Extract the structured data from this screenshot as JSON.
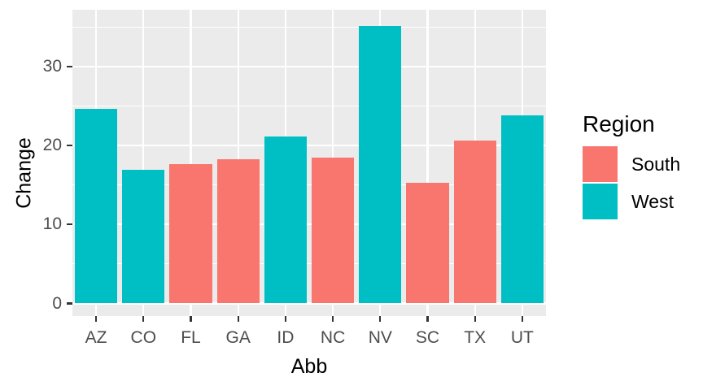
{
  "chart_data": {
    "type": "bar",
    "title": "",
    "xlabel": "Abb",
    "ylabel": "Change",
    "categories": [
      "AZ",
      "CO",
      "FL",
      "GA",
      "ID",
      "NC",
      "NV",
      "SC",
      "TX",
      "UT"
    ],
    "series_by_category": [
      "West",
      "West",
      "South",
      "South",
      "West",
      "South",
      "West",
      "South",
      "South",
      "West"
    ],
    "values": [
      24.6,
      16.9,
      17.6,
      18.3,
      21.1,
      18.5,
      35.1,
      15.3,
      20.6,
      23.8
    ],
    "ylim": [
      -1.6,
      37.2
    ],
    "y_major_ticks": [
      0,
      10,
      20,
      30
    ],
    "y_minor_ticks": [
      5,
      15,
      25,
      35
    ],
    "grid": "on",
    "legend_position": "right",
    "legend": {
      "title": "Region",
      "entries": [
        {
          "label": "South",
          "color": "#F8766D"
        },
        {
          "label": "West",
          "color": "#00BFC4"
        }
      ]
    },
    "colors": {
      "South": "#F8766D",
      "West": "#00BFC4",
      "panel_background": "#EBEBEB",
      "grid": "#FFFFFF",
      "axis_text": "#4D4D4D",
      "axis_title": "#000000",
      "tick_marks": "#333333"
    }
  }
}
